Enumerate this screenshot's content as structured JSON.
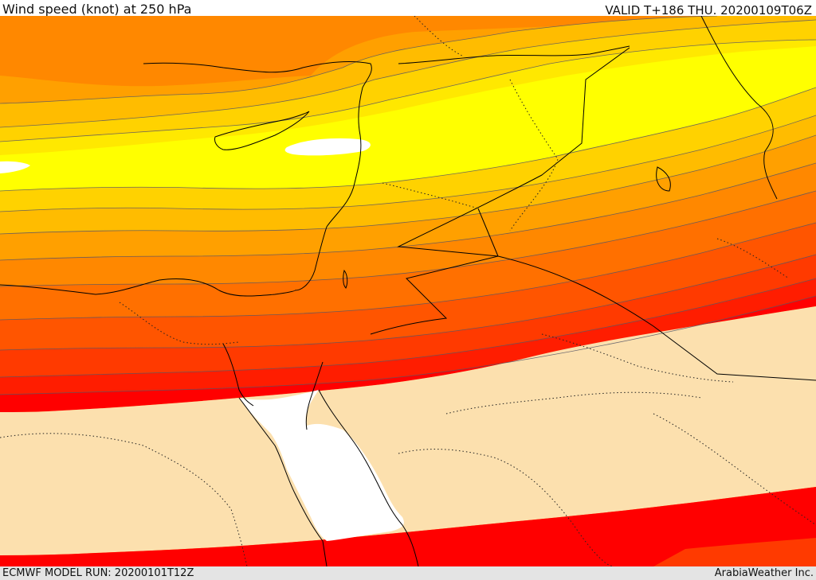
{
  "header": {
    "title": "Wind speed (knot) at 250 hPa",
    "valid": "VALID T+186 THU. 20200109T06Z"
  },
  "footer": {
    "model_run": "ECMWF MODEL RUN: 20200101T12Z",
    "credit": "ArabiaWeather Inc."
  },
  "map": {
    "variable": "wind speed",
    "units": "knot",
    "pressure_level": "250 hPa",
    "region": "Eastern Mediterranean, Levant, Egypt, Sinai, Red Sea, Arabian Peninsula",
    "colors": {
      "calm": "#ffffff",
      "pale_beige": "#fce0ae",
      "light_yellow": "#ffff00",
      "yellow": "#ffe800",
      "gold": "#ffd200",
      "amber": "#ffbc00",
      "orange_light": "#ffa000",
      "orange": "#ff8800",
      "orange_dark": "#ff7000",
      "red_orange": "#ff5500",
      "red_light": "#ff3a00",
      "red": "#ff1d00",
      "deep_red": "#ff0000",
      "contour_line": "#555566",
      "coast_line": "#000000"
    }
  }
}
